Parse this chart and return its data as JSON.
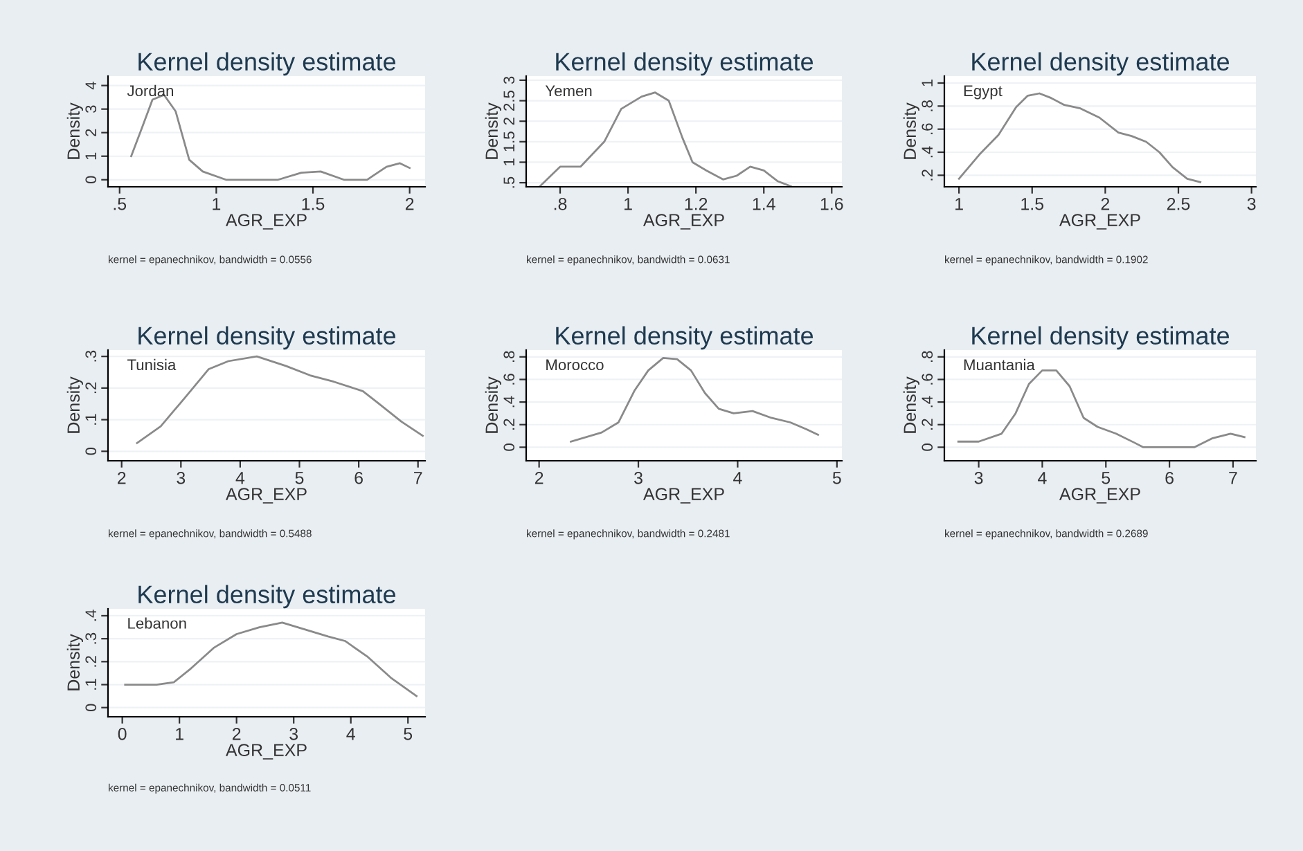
{
  "chart_data": [
    {
      "type": "line",
      "title": "Kernel density estimate",
      "xlabel": "AGR_EXP",
      "ylabel": "Density",
      "annotations": [
        "Jordan",
        "kernel = epanechnikov, bandwidth = 0.0556"
      ],
      "grid": "y",
      "xlim": [
        0.44,
        2.08
      ],
      "ylim": [
        -0.3,
        4.4
      ],
      "xticks": [
        {
          "value": 0.5,
          "label": ".5"
        },
        1,
        1.5,
        2
      ],
      "yticks": [
        0,
        1,
        2,
        3,
        4
      ],
      "x": [
        0.56,
        0.62,
        0.67,
        0.73,
        0.79,
        0.86,
        0.93,
        1.05,
        1.32,
        1.44,
        1.54,
        1.66,
        1.78,
        1.88,
        1.95,
        2.0
      ],
      "series": [
        {
          "color": "#8a8a8a",
          "values": [
            1.0,
            2.3,
            3.4,
            3.6,
            2.9,
            0.85,
            0.35,
            0,
            0,
            0.3,
            0.35,
            0,
            0,
            0.55,
            0.7,
            0.5
          ]
        }
      ]
    },
    {
      "type": "line",
      "title": "Kernel density estimate",
      "xlabel": "AGR_EXP",
      "ylabel": "Density",
      "annotations": [
        "Yemen",
        "kernel = epanechnikov, bandwidth = 0.0631"
      ],
      "grid": "y",
      "xlim": [
        0.7,
        1.63
      ],
      "ylim": [
        0.4,
        3.1
      ],
      "xticks": [
        {
          "value": 0.8,
          "label": ".8"
        },
        1,
        1.2,
        1.4,
        1.6
      ],
      "yticks": [
        {
          "value": 0.5,
          "label": ".5"
        },
        1,
        1.5,
        2,
        2.5,
        3
      ],
      "x": [
        0.74,
        0.8,
        0.86,
        0.93,
        0.98,
        1.04,
        1.08,
        1.12,
        1.16,
        1.19,
        1.23,
        1.28,
        1.32,
        1.36,
        1.4,
        1.44,
        1.48
      ],
      "series": [
        {
          "color": "#8a8a8a",
          "values": [
            0.41,
            0.89,
            0.89,
            1.5,
            2.3,
            2.6,
            2.7,
            2.5,
            1.6,
            1.0,
            0.8,
            0.58,
            0.67,
            0.89,
            0.8,
            0.54,
            0.41
          ]
        }
      ]
    },
    {
      "type": "line",
      "title": "Kernel density estimate",
      "xlabel": "AGR_EXP",
      "ylabel": "Density",
      "annotations": [
        "Egypt",
        "kernel = epanechnikov, bandwidth = 0.1902"
      ],
      "grid": "y",
      "xlim": [
        0.9,
        3.03
      ],
      "ylim": [
        0.1,
        1.06
      ],
      "xticks": [
        1,
        1.5,
        2,
        2.5,
        3
      ],
      "yticks": [
        {
          "value": 0.2,
          "label": ".2"
        },
        {
          "value": 0.4,
          "label": ".4"
        },
        {
          "value": 0.6,
          "label": ".6"
        },
        {
          "value": 0.8,
          "label": ".8"
        },
        1
      ],
      "x": [
        1.0,
        1.14,
        1.27,
        1.39,
        1.47,
        1.55,
        1.63,
        1.72,
        1.83,
        1.96,
        2.09,
        2.18,
        2.28,
        2.37,
        2.46,
        2.56,
        2.65
      ],
      "series": [
        {
          "color": "#8a8a8a",
          "values": [
            0.17,
            0.38,
            0.55,
            0.79,
            0.89,
            0.91,
            0.87,
            0.81,
            0.78,
            0.7,
            0.57,
            0.54,
            0.49,
            0.4,
            0.27,
            0.17,
            0.14
          ]
        }
      ]
    },
    {
      "type": "line",
      "title": "Kernel density estimate",
      "xlabel": "AGR_EXP",
      "ylabel": "Density",
      "annotations": [
        "Tunisia",
        "kernel = epanechnikov, bandwidth = 0.5488"
      ],
      "grid": "y",
      "xlim": [
        1.77,
        7.12
      ],
      "ylim": [
        -0.03,
        0.32
      ],
      "xticks": [
        2,
        3,
        4,
        5,
        6,
        7
      ],
      "yticks": [
        0,
        {
          "value": 0.1,
          "label": ".1"
        },
        {
          "value": 0.2,
          "label": ".2"
        },
        {
          "value": 0.3,
          "label": ".3"
        }
      ],
      "x": [
        2.26,
        2.66,
        3.07,
        3.47,
        3.8,
        4.28,
        4.77,
        5.18,
        5.58,
        6.07,
        6.31,
        6.72,
        7.08
      ],
      "series": [
        {
          "color": "#8a8a8a",
          "values": [
            0.026,
            0.079,
            0.17,
            0.26,
            0.285,
            0.3,
            0.27,
            0.24,
            0.22,
            0.19,
            0.155,
            0.094,
            0.049
          ]
        }
      ]
    },
    {
      "type": "line",
      "title": "Kernel density estimate",
      "xlabel": "AGR_EXP",
      "ylabel": "Density",
      "annotations": [
        "Morocco",
        "kernel = epanechnikov, bandwidth = 0.2481"
      ],
      "grid": "y",
      "xlim": [
        1.87,
        5.05
      ],
      "ylim": [
        -0.12,
        0.86
      ],
      "xticks": [
        2,
        3,
        4,
        5
      ],
      "yticks": [
        0,
        {
          "value": 0.2,
          "label": ".2"
        },
        {
          "value": 0.4,
          "label": ".4"
        },
        {
          "value": 0.6,
          "label": ".6"
        },
        {
          "value": 0.8,
          "label": ".8"
        }
      ],
      "x": [
        2.32,
        2.63,
        2.8,
        2.96,
        3.1,
        3.25,
        3.39,
        3.53,
        3.67,
        3.81,
        3.96,
        4.15,
        4.34,
        4.53,
        4.69,
        4.81
      ],
      "series": [
        {
          "color": "#8a8a8a",
          "values": [
            0.05,
            0.13,
            0.22,
            0.5,
            0.68,
            0.79,
            0.78,
            0.68,
            0.48,
            0.34,
            0.3,
            0.32,
            0.26,
            0.22,
            0.16,
            0.11
          ]
        }
      ]
    },
    {
      "type": "line",
      "title": "Kernel density estimate",
      "xlabel": "AGR_EXP",
      "ylabel": "Density",
      "annotations": [
        "Muantania",
        "kernel = epanechnikov, bandwidth = 0.2689"
      ],
      "grid": "y",
      "xlim": [
        2.46,
        7.36
      ],
      "ylim": [
        -0.12,
        0.86
      ],
      "xticks": [
        3,
        4,
        5,
        6,
        7
      ],
      "yticks": [
        0,
        {
          "value": 0.2,
          "label": ".2"
        },
        {
          "value": 0.4,
          "label": ".4"
        },
        {
          "value": 0.6,
          "label": ".6"
        },
        {
          "value": 0.8,
          "label": ".8"
        }
      ],
      "x": [
        2.68,
        3.0,
        3.36,
        3.58,
        3.79,
        4.0,
        4.22,
        4.43,
        4.65,
        4.87,
        5.16,
        5.45,
        5.59,
        6.39,
        6.68,
        6.96,
        7.18
      ],
      "series": [
        {
          "color": "#8a8a8a",
          "values": [
            0.05,
            0.05,
            0.12,
            0.3,
            0.56,
            0.68,
            0.68,
            0.54,
            0.26,
            0.18,
            0.12,
            0.04,
            0,
            0,
            0.08,
            0.12,
            0.09
          ]
        }
      ]
    },
    {
      "type": "line",
      "title": "Kernel density estimate",
      "xlabel": "AGR_EXP",
      "ylabel": "Density",
      "annotations": [
        "Lebanon",
        "kernel = epanechnikov, bandwidth = 0.0511"
      ],
      "grid": "y",
      "xlim": [
        -0.25,
        5.3
      ],
      "ylim": [
        -0.04,
        0.43
      ],
      "xticks": [
        0,
        1,
        2,
        3,
        4,
        5
      ],
      "yticks": [
        0,
        {
          "value": 0.1,
          "label": ".1"
        },
        {
          "value": 0.2,
          "label": ".2"
        },
        {
          "value": 0.3,
          "label": ".3"
        },
        {
          "value": 0.4,
          "label": ".4"
        }
      ],
      "x": [
        0.05,
        0.6,
        0.9,
        1.2,
        1.6,
        2.0,
        2.4,
        2.8,
        3.2,
        3.6,
        3.9,
        4.3,
        4.7,
        5.15
      ],
      "series": [
        {
          "color": "#8a8a8a",
          "values": [
            0.1,
            0.1,
            0.11,
            0.17,
            0.26,
            0.32,
            0.35,
            0.37,
            0.34,
            0.31,
            0.29,
            0.22,
            0.13,
            0.05
          ]
        }
      ]
    }
  ]
}
